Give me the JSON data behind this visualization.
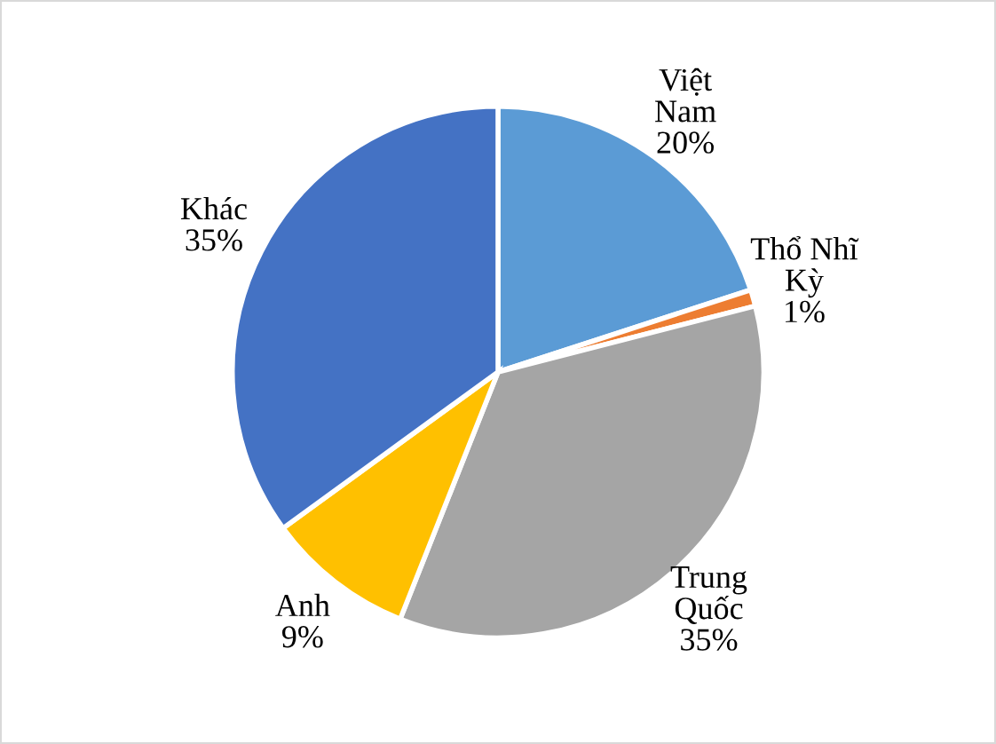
{
  "chart_data": {
    "type": "pie",
    "categories": [
      "Việt Nam",
      "Thổ Nhĩ Kỳ",
      "Trung Quốc",
      "Anh",
      "Khác"
    ],
    "values": [
      20,
      1,
      35,
      9,
      35
    ],
    "colors": [
      "#5b9bd5",
      "#ed7d31",
      "#a5a5a5",
      "#ffc000",
      "#4472c4"
    ],
    "value_labels": [
      "20%",
      "1%",
      "35%",
      "9%",
      "35%"
    ]
  }
}
